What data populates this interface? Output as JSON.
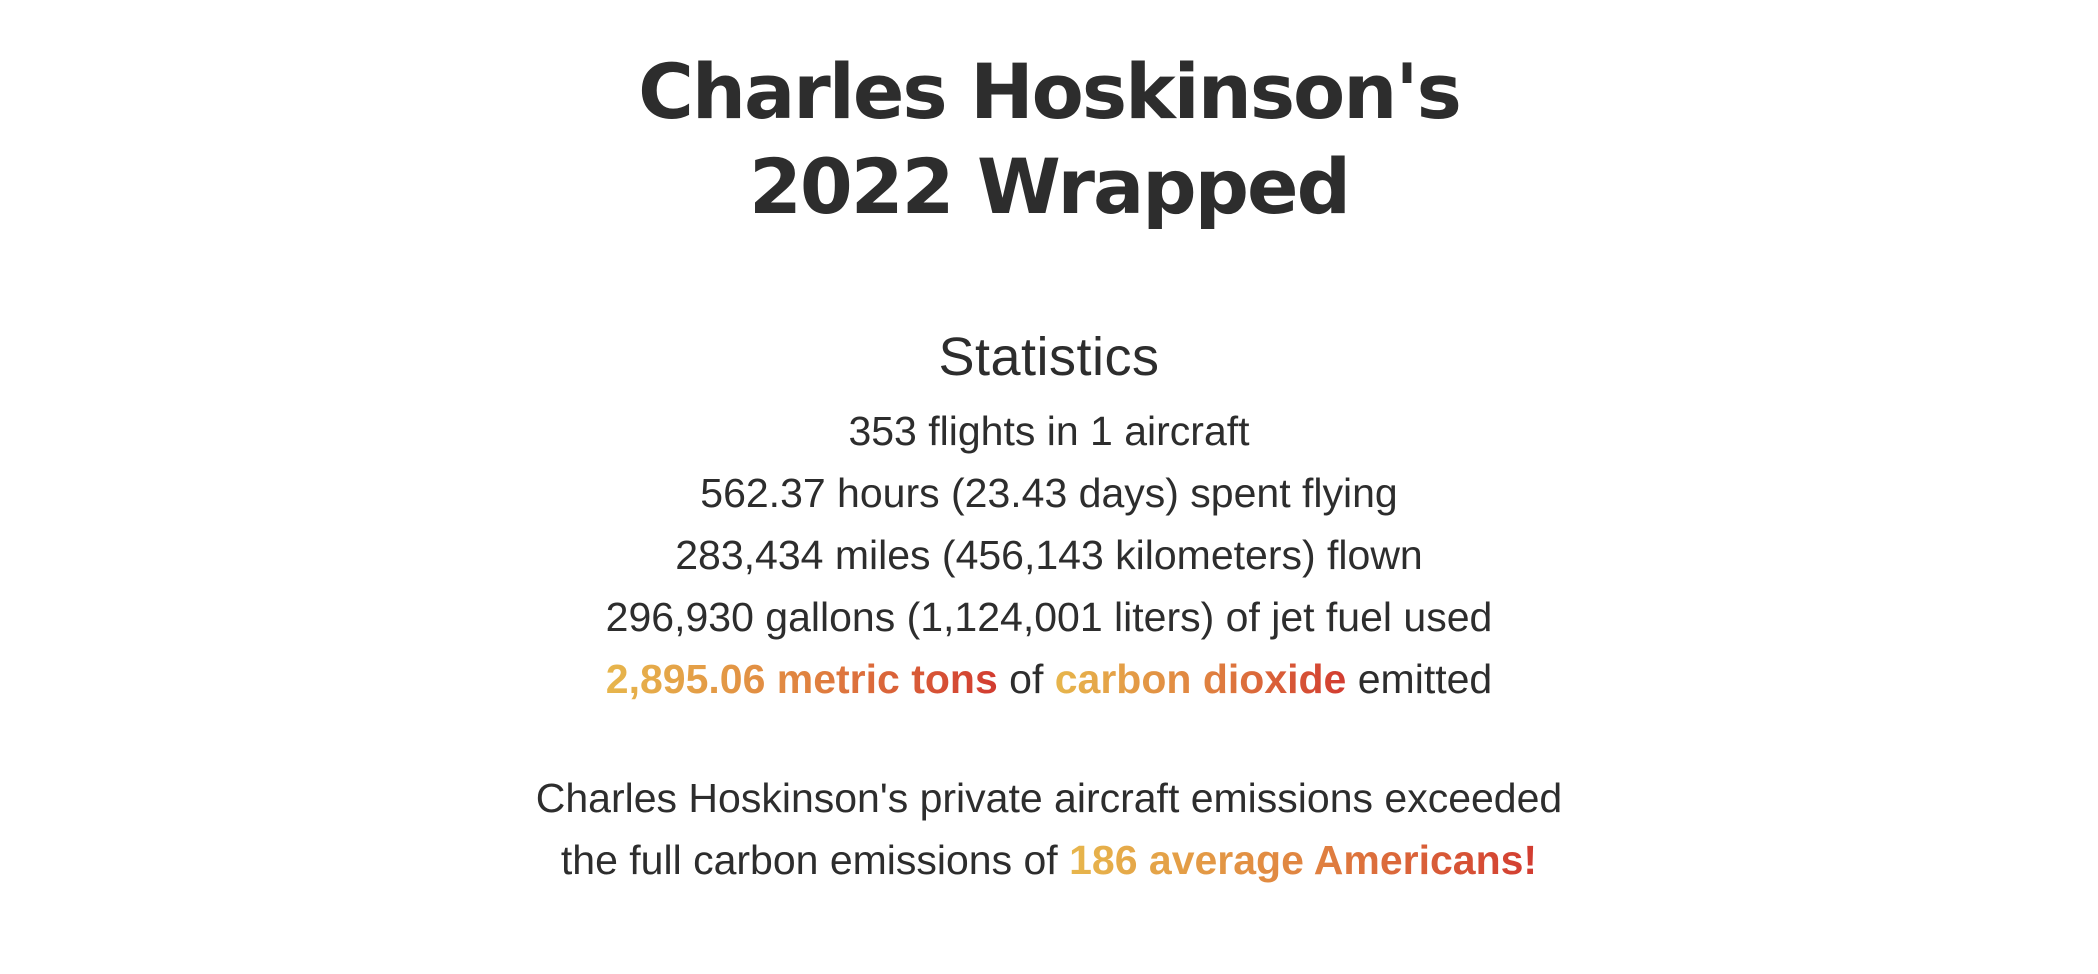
{
  "colors": {
    "text_primary": "#2d2d2d",
    "gradient_start": "#e7b64c",
    "gradient_mid": "#e08240",
    "gradient_end": "#d23b30",
    "page_background": "#ffffff"
  },
  "header": {
    "title_line1": "Charles Hoskinson's",
    "title_line2": "2022 Wrapped"
  },
  "stats": {
    "heading": "Statistics",
    "lines": [
      {
        "name": "flights",
        "segments": [
          {
            "text": "353 flights in 1 aircraft",
            "style": "plain"
          }
        ]
      },
      {
        "name": "hours",
        "segments": [
          {
            "text": "562.37 hours (23.43 days) spent flying",
            "style": "plain"
          }
        ]
      },
      {
        "name": "distance",
        "segments": [
          {
            "text": "283,434 miles (456,143 kilometers) flown",
            "style": "plain"
          }
        ]
      },
      {
        "name": "fuel",
        "segments": [
          {
            "text": "296,930 gallons (1,124,001 liters) of jet fuel used",
            "style": "plain"
          }
        ]
      },
      {
        "name": "emissions",
        "segments": [
          {
            "text": "2,895.06 metric tons",
            "style": "gradient"
          },
          {
            "text": " of ",
            "style": "plain"
          },
          {
            "text": "carbon dioxide",
            "style": "gradient"
          },
          {
            "text": " emitted",
            "style": "plain"
          }
        ]
      }
    ]
  },
  "summary": {
    "lines": [
      {
        "name": "summary-1",
        "segments": [
          {
            "text": "Charles Hoskinson's private aircraft emissions exceeded",
            "style": "plain"
          }
        ]
      },
      {
        "name": "summary-2",
        "segments": [
          {
            "text": "the full carbon emissions of ",
            "style": "plain"
          },
          {
            "text": "186 average Americans!",
            "style": "gradient"
          }
        ]
      }
    ]
  }
}
